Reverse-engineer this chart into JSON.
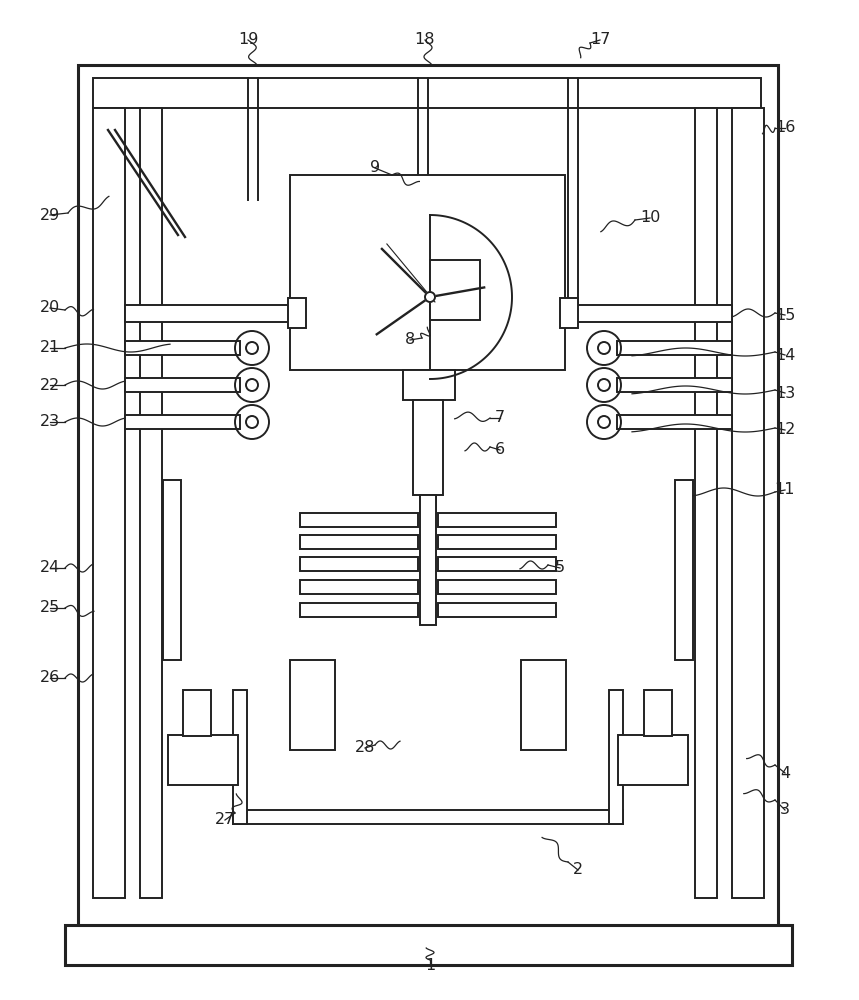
{
  "bg": "#ffffff",
  "lc": "#222222",
  "lw": 1.4,
  "lw2": 2.2,
  "fs": 11.5
}
